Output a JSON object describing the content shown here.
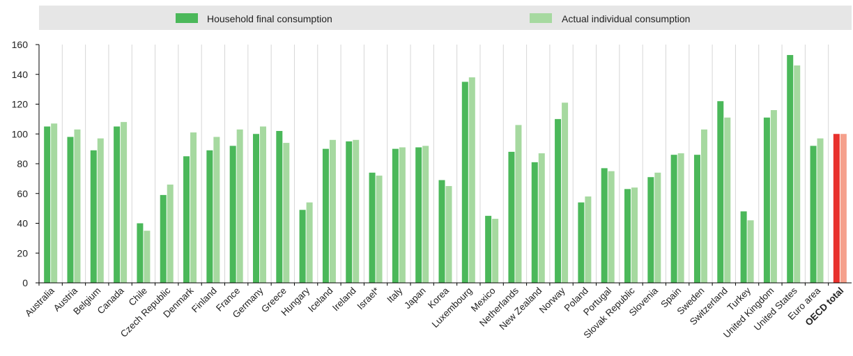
{
  "chart_data": {
    "type": "bar",
    "title": "",
    "xlabel": "",
    "ylabel": "",
    "ylim": [
      0,
      160
    ],
    "yticks": [
      0,
      20,
      40,
      60,
      80,
      100,
      120,
      140,
      160
    ],
    "grid": "vertical",
    "legend_position": "top",
    "categories": [
      "Australia",
      "Austria",
      "Belgium",
      "Canada",
      "Chile",
      "Czech Republic",
      "Denmark",
      "Finland",
      "France",
      "Germany",
      "Greece",
      "Hungary",
      "Iceland",
      "Ireland",
      "Israel*",
      "Italy",
      "Japan",
      "Korea",
      "Luxembourg",
      "Mexico",
      "Netherlands",
      "New Zealand",
      "Norway",
      "Poland",
      "Portugal",
      "Slovak Republic",
      "Slovenia",
      "Spain",
      "Sweden",
      "Switzerland",
      "Turkey",
      "United Kingdom",
      "United States",
      "Euro area",
      "OECD total"
    ],
    "highlight_category": "OECD total",
    "series": [
      {
        "name": "Household final consumption",
        "color": "#4bb85a",
        "highlight_color": "#e8312d",
        "values": [
          105,
          98,
          89,
          105,
          40,
          59,
          85,
          89,
          92,
          100,
          102,
          49,
          90,
          95,
          74,
          90,
          91,
          69,
          135,
          45,
          88,
          81,
          110,
          54,
          77,
          63,
          71,
          86,
          86,
          122,
          48,
          111,
          153,
          92,
          100
        ]
      },
      {
        "name": "Actual individual consumption",
        "color": "#a6d9a0",
        "highlight_color": "#f5a08c",
        "values": [
          107,
          103,
          97,
          108,
          35,
          66,
          101,
          98,
          103,
          105,
          94,
          54,
          96,
          96,
          72,
          91,
          92,
          65,
          138,
          43,
          106,
          87,
          121,
          58,
          75,
          64,
          74,
          87,
          103,
          111,
          42,
          116,
          146,
          97,
          100
        ]
      }
    ]
  }
}
